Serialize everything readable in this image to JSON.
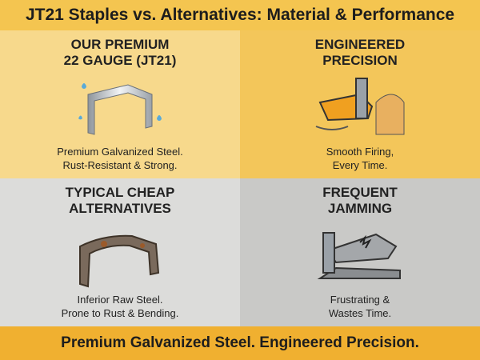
{
  "header": {
    "title": "JT21 Staples vs. Alternatives: Material & Performance"
  },
  "panels": [
    {
      "title": [
        "OUR PREMIUM",
        "22 GAUGE (JT21)"
      ],
      "caption": [
        "Premium Galvanized Steel.",
        "Rust-Resistant & Strong."
      ]
    },
    {
      "title": [
        "ENGINEERED",
        "PRECISION"
      ],
      "caption": [
        "Smooth Firing,",
        "Every Time."
      ]
    },
    {
      "title": [
        "TYPICAL CHEAP",
        "ALTERNATIVES"
      ],
      "caption": [
        "Inferior Raw Steel.",
        "Prone to Rust & Bending."
      ]
    },
    {
      "title": [
        "FREQUENT",
        "JAMMING"
      ],
      "caption": [
        "Frustrating &",
        "Wastes Time."
      ]
    }
  ],
  "footer": {
    "text": "Premium Galvanized Steel. Engineered Precision."
  }
}
